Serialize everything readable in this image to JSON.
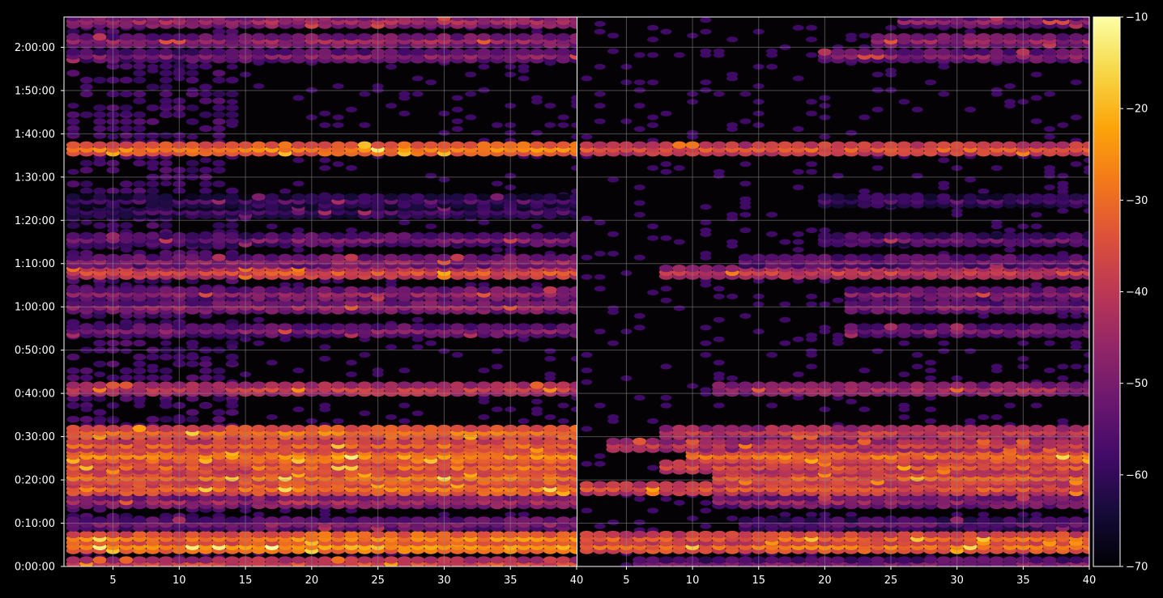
{
  "chart_data": [
    {
      "type": "heatmap",
      "panel": "left",
      "title": "",
      "xlabel": "",
      "ylabel": "",
      "xlim": [
        1.3,
        40
      ],
      "xticks": [
        5,
        10,
        15,
        20,
        25,
        30,
        35,
        40
      ],
      "xtick_labels": [
        "5",
        "10",
        "15",
        "20",
        "25",
        "30",
        "35",
        "40"
      ],
      "y_range_minutes": [
        0,
        127
      ],
      "yticks_minutes": [
        0,
        10,
        20,
        30,
        40,
        50,
        60,
        70,
        80,
        90,
        100,
        110,
        120
      ],
      "ytick_labels": [
        "0:00:00",
        "0:10:00",
        "0:20:00",
        "0:30:00",
        "0:40:00",
        "0:50:00",
        "1:00:00",
        "1:10:00",
        "1:20:00",
        "1:30:00",
        "1:40:00",
        "1:50:00",
        "2:00:00"
      ],
      "grid": true,
      "colormap": "inferno",
      "bands": [
        {
          "t_min": 0.6,
          "level": -38,
          "x_from": 2,
          "x_to": 40
        },
        {
          "t_min": 4.6,
          "level": -25,
          "x_from": 2,
          "x_to": 40
        },
        {
          "t_min": 6.5,
          "level": -28,
          "x_from": 2,
          "x_to": 40
        },
        {
          "t_min": 9.8,
          "level": -50,
          "x_from": 2,
          "x_to": 40
        },
        {
          "t_min": 15.0,
          "level": -45,
          "x_from": 2,
          "x_to": 40
        },
        {
          "t_min": 18.0,
          "level": -30,
          "x_from": 2,
          "x_to": 40
        },
        {
          "t_min": 20.5,
          "level": -30,
          "x_from": 2,
          "x_to": 40
        },
        {
          "t_min": 23.0,
          "level": -32,
          "x_from": 2,
          "x_to": 40
        },
        {
          "t_min": 25.5,
          "level": -27,
          "x_from": 2,
          "x_to": 40
        },
        {
          "t_min": 28.0,
          "level": -33,
          "x_from": 2,
          "x_to": 40
        },
        {
          "t_min": 31.0,
          "level": -30,
          "x_from": 2,
          "x_to": 40
        },
        {
          "t_min": 41.0,
          "level": -40,
          "x_from": 2,
          "x_to": 40
        },
        {
          "t_min": 54.5,
          "level": -50,
          "x_from": 2,
          "x_to": 40
        },
        {
          "t_min": 60.0,
          "level": -47,
          "x_from": 2,
          "x_to": 40
        },
        {
          "t_min": 63.0,
          "level": -48,
          "x_from": 2,
          "x_to": 40
        },
        {
          "t_min": 68.0,
          "level": -36,
          "x_from": 2,
          "x_to": 40
        },
        {
          "t_min": 70.5,
          "level": -48,
          "x_from": 2,
          "x_to": 40
        },
        {
          "t_min": 75.5,
          "level": -52,
          "x_from": 2,
          "x_to": 40
        },
        {
          "t_min": 82.0,
          "level": -58,
          "x_from": 2,
          "x_to": 40
        },
        {
          "t_min": 84.5,
          "level": -58,
          "x_from": 2,
          "x_to": 40
        },
        {
          "t_min": 96.5,
          "level": -28,
          "x_from": 2,
          "x_to": 40
        },
        {
          "t_min": 118.0,
          "level": -50,
          "x_from": 2,
          "x_to": 40
        },
        {
          "t_min": 121.5,
          "level": -47,
          "x_from": 2,
          "x_to": 40
        },
        {
          "t_min": 126.0,
          "level": -45,
          "x_from": 2,
          "x_to": 40
        }
      ],
      "background_patch": {
        "t_from": 10,
        "t_to": 127,
        "x_from": 2,
        "x_to": 14,
        "level": -58
      }
    },
    {
      "type": "heatmap",
      "panel": "right",
      "title": "",
      "xlabel": "",
      "ylabel": "",
      "xlim": [
        1.3,
        40
      ],
      "xticks": [
        5,
        10,
        15,
        20,
        25,
        30,
        35,
        40
      ],
      "xtick_labels": [
        "5",
        "10",
        "15",
        "20",
        "25",
        "30",
        "35",
        "40"
      ],
      "y_range_minutes": [
        0,
        127
      ],
      "grid": true,
      "colormap": "inferno",
      "bands": [
        {
          "t_min": 0.6,
          "level": -52,
          "x_from": 6,
          "x_to": 40
        },
        {
          "t_min": 4.6,
          "level": -30,
          "x_from": 2,
          "x_to": 40
        },
        {
          "t_min": 6.5,
          "level": -33,
          "x_from": 2,
          "x_to": 40
        },
        {
          "t_min": 9.8,
          "level": -55,
          "x_from": 14,
          "x_to": 40
        },
        {
          "t_min": 15.0,
          "level": -48,
          "x_from": 12,
          "x_to": 40
        },
        {
          "t_min": 18.0,
          "level": -35,
          "x_from": 2,
          "x_to": 40
        },
        {
          "t_min": 20.5,
          "level": -34,
          "x_from": 12,
          "x_to": 40
        },
        {
          "t_min": 23.0,
          "level": -36,
          "x_from": 8,
          "x_to": 40
        },
        {
          "t_min": 25.5,
          "level": -30,
          "x_from": 10,
          "x_to": 40
        },
        {
          "t_min": 28.0,
          "level": -40,
          "x_from": 4,
          "x_to": 40
        },
        {
          "t_min": 31.0,
          "level": -40,
          "x_from": 8,
          "x_to": 40
        },
        {
          "t_min": 41.0,
          "level": -45,
          "x_from": 12,
          "x_to": 40
        },
        {
          "t_min": 54.5,
          "level": -52,
          "x_from": 22,
          "x_to": 40
        },
        {
          "t_min": 60.0,
          "level": -50,
          "x_from": 22,
          "x_to": 40
        },
        {
          "t_min": 63.0,
          "level": -50,
          "x_from": 22,
          "x_to": 40
        },
        {
          "t_min": 68.0,
          "level": -40,
          "x_from": 8,
          "x_to": 40
        },
        {
          "t_min": 70.5,
          "level": -52,
          "x_from": 14,
          "x_to": 40
        },
        {
          "t_min": 75.5,
          "level": -55,
          "x_from": 20,
          "x_to": 40
        },
        {
          "t_min": 84.5,
          "level": -58,
          "x_from": 20,
          "x_to": 40
        },
        {
          "t_min": 96.5,
          "level": -35,
          "x_from": 2,
          "x_to": 40
        },
        {
          "t_min": 118.0,
          "level": -50,
          "x_from": 20,
          "x_to": 40
        },
        {
          "t_min": 121.5,
          "level": -48,
          "x_from": 24,
          "x_to": 40
        },
        {
          "t_min": 126.0,
          "level": -50,
          "x_from": 26,
          "x_to": 40
        }
      ]
    }
  ],
  "colorbar": {
    "vmin": -70,
    "vmax": -10,
    "ticks": [
      -70,
      -60,
      -50,
      -40,
      -30,
      -20,
      -10
    ],
    "tick_labels": [
      "−70",
      "−60",
      "−50",
      "−40",
      "−30",
      "−20",
      "−10"
    ],
    "colormap": "inferno"
  },
  "colors": {
    "background": "#000000",
    "axes_spine": "#ffffff",
    "grid": "#8a8a8a",
    "text": "#ffffff"
  }
}
